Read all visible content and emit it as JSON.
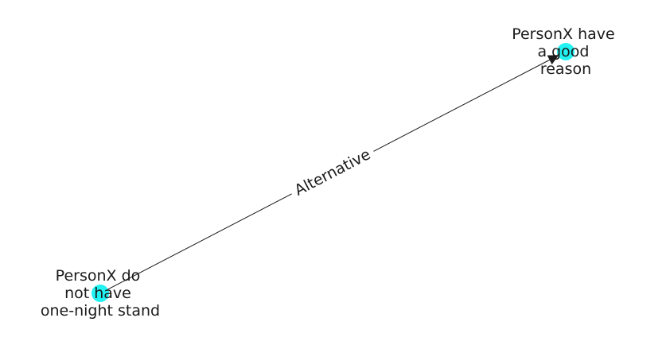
{
  "graph": {
    "node_color": "#22f2f2",
    "edge_color": "#1a1a1a",
    "nodes": [
      {
        "id": "source",
        "label_lines": [
          "PersonX do",
          "not have",
          "one-night stand"
        ]
      },
      {
        "id": "target",
        "label_lines": [
          "PersonX have",
          "a good",
          "reason"
        ]
      }
    ],
    "edges": [
      {
        "from": "source",
        "to": "target",
        "label": "Alternative"
      }
    ]
  }
}
